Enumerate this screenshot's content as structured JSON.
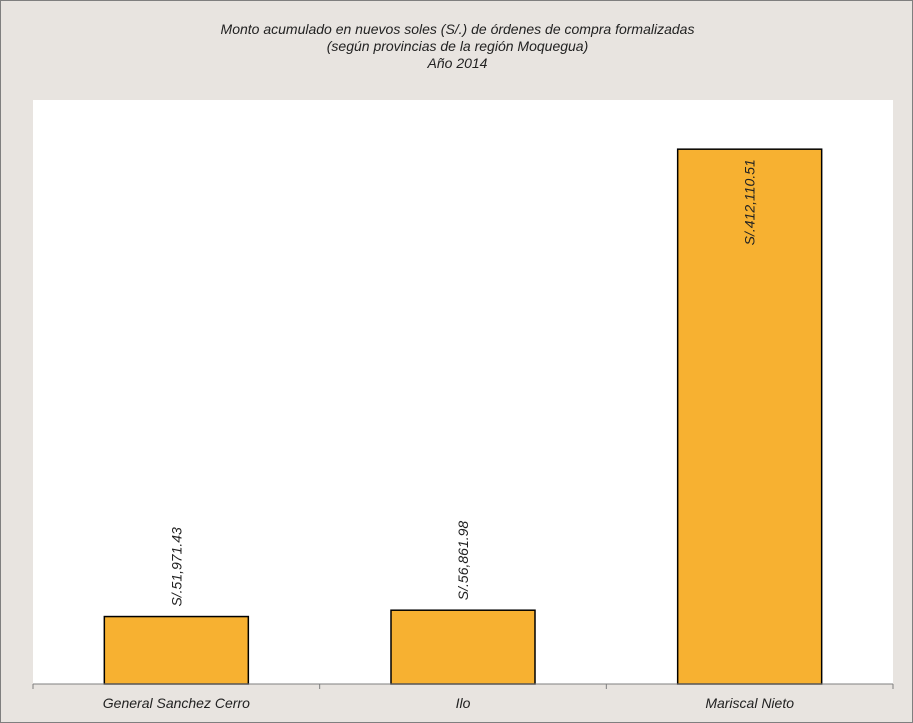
{
  "chart_data": {
    "type": "bar",
    "title": [
      "Monto acumulado en nuevos soles (S/.) de órdenes de compra formalizadas",
      "(según provincias de la región Moquegua)",
      "Año 2014"
    ],
    "categories": [
      "General Sanchez Cerro",
      "Ilo",
      "Mariscal Nieto"
    ],
    "values": [
      51971.43,
      56861.98,
      412110.51
    ],
    "value_labels": [
      "S/.51,971.43",
      "S/.56,861.98",
      "S/.412,110.51"
    ],
    "label_position": [
      "outside-end",
      "outside-end",
      "inside-end"
    ],
    "ylim": [
      0,
      450000
    ],
    "grid": false,
    "legend": "none",
    "colors": {
      "bar_fill": "#f7b131",
      "bar_stroke": "#000000",
      "chart_background": "#e8e4e0",
      "plot_background": "#ffffff",
      "axis": "#7f7f7f"
    }
  }
}
